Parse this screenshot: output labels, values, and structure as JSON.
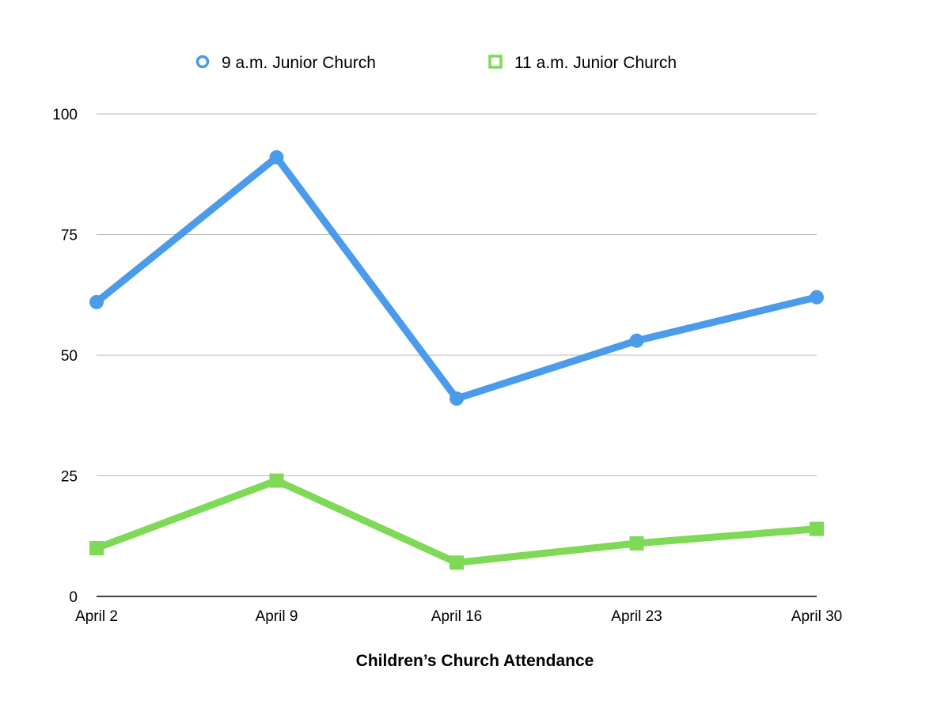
{
  "chart_data": {
    "type": "line",
    "title": "Children’s Church Attendance",
    "xlabel": "",
    "ylabel": "",
    "categories": [
      "April 2",
      "April 9",
      "April 16",
      "April 23",
      "April 30"
    ],
    "ylim": [
      0,
      100
    ],
    "yticks": [
      0,
      25,
      50,
      75,
      100
    ],
    "grid": true,
    "legend_position": "top",
    "series": [
      {
        "name": "9 a.m. Junior Church",
        "values": [
          61,
          91,
          41,
          53,
          62
        ],
        "color": "#4A9BE9",
        "marker": "circle"
      },
      {
        "name": "11 a.m. Junior Church",
        "values": [
          10,
          24,
          7,
          11,
          14
        ],
        "color": "#7ED957",
        "marker": "square"
      }
    ]
  }
}
